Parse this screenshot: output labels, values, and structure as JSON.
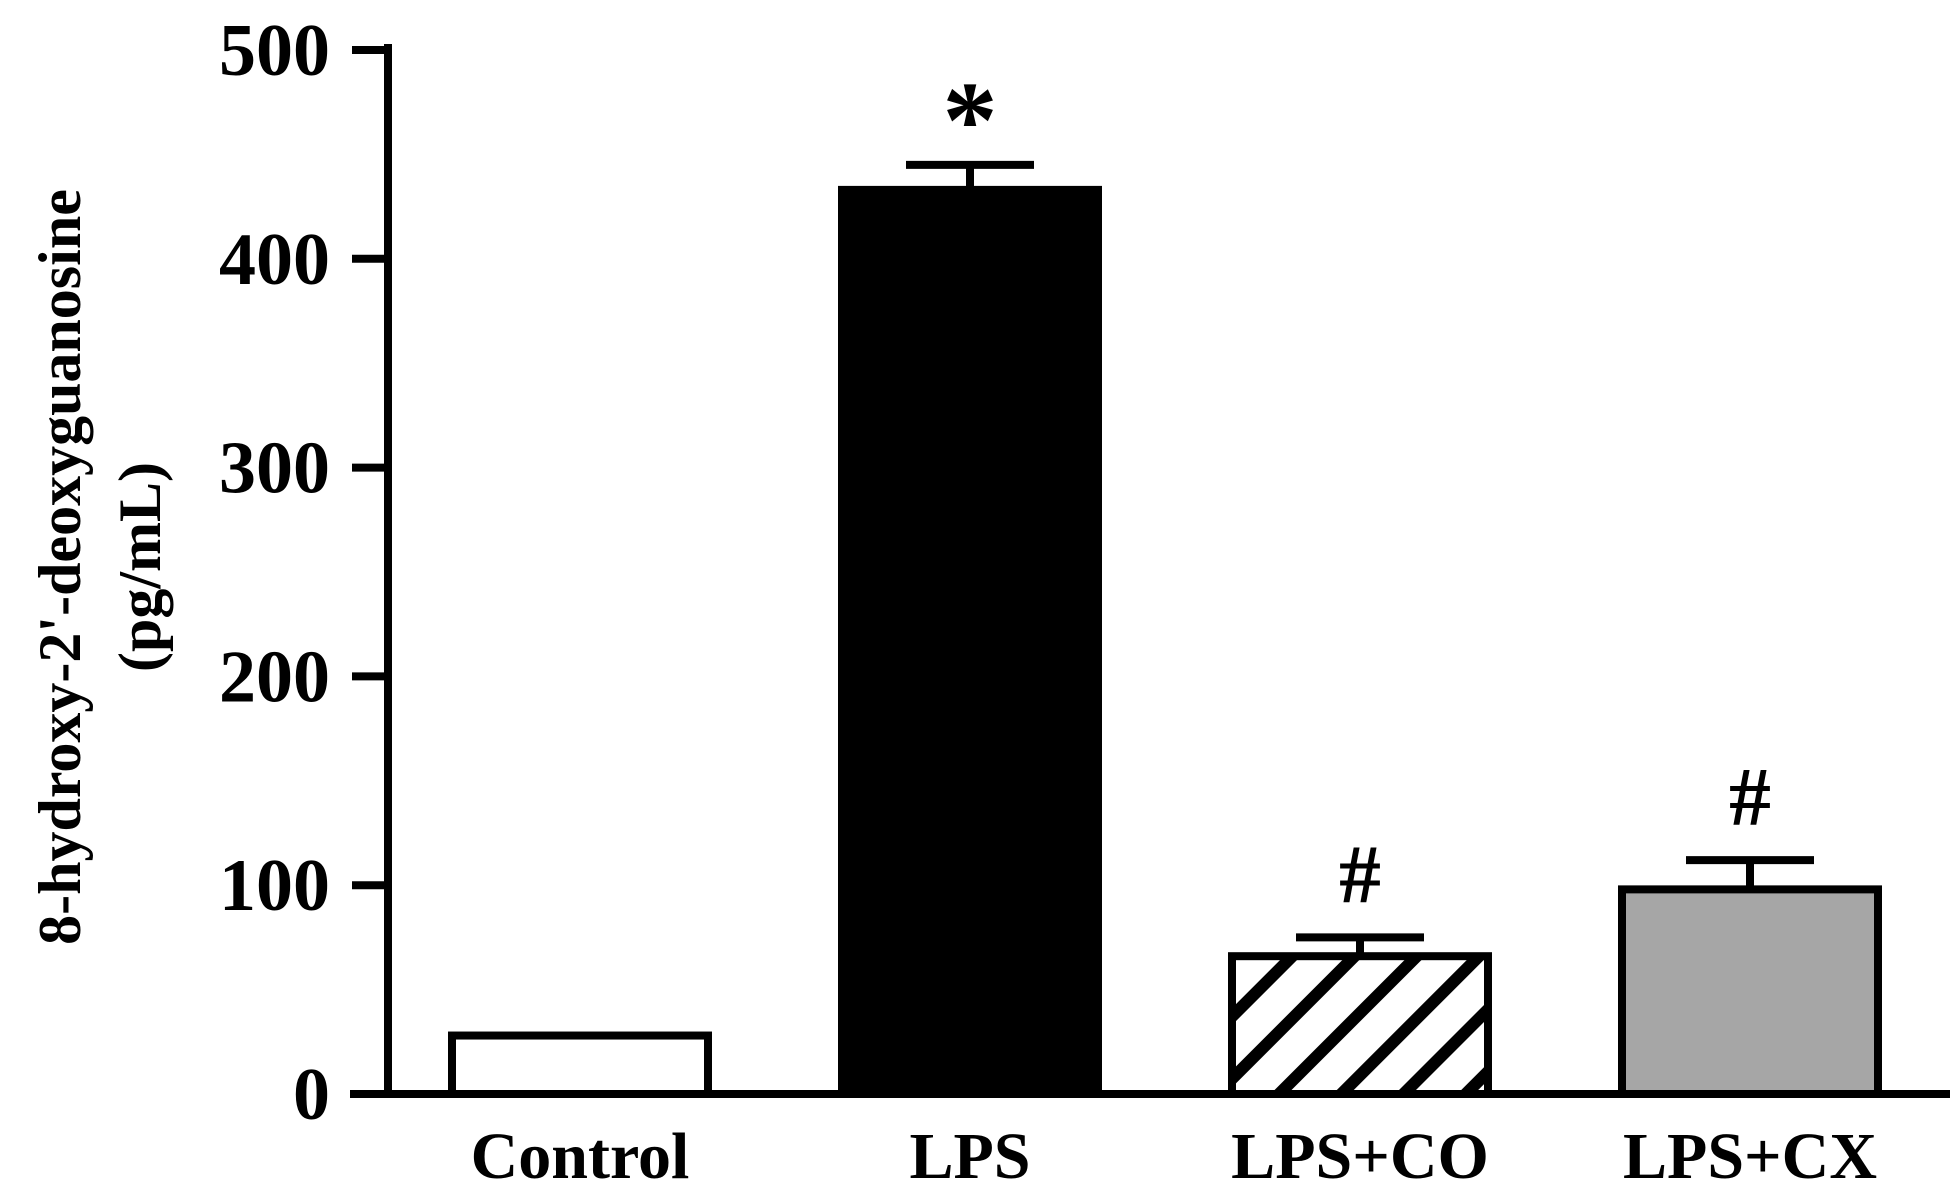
{
  "chart_data": {
    "type": "bar",
    "title": "",
    "ylabel_lines": [
      "8-hydroxy-2'-deoxyguanosine",
      "(pg/mL)"
    ],
    "xlabel": "",
    "ylim": [
      0,
      500
    ],
    "yticks": [
      0,
      100,
      200,
      300,
      400,
      500
    ],
    "categories": [
      "Control",
      "LPS",
      "LPS+CO",
      "LPS+CX"
    ],
    "values": [
      28,
      433,
      66,
      98
    ],
    "errors": [
      0,
      12,
      9,
      14
    ],
    "annotations": [
      "",
      "*",
      "#",
      "#"
    ],
    "bar_styles": [
      {
        "fill": "#ffffff",
        "pattern": "none"
      },
      {
        "fill": "#000000",
        "pattern": "none"
      },
      {
        "fill": "#ffffff",
        "pattern": "diagonal-hatch"
      },
      {
        "fill": "#a6a6a6",
        "pattern": "none"
      }
    ],
    "grid": false,
    "legend": "none"
  }
}
